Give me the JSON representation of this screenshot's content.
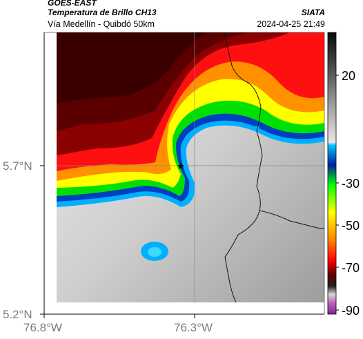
{
  "header": {
    "satellite": "GOES-EAST",
    "product": "Temperatura de Brillo CH13",
    "route": "Vía Medellín - Quibdó 50km",
    "organization": "SIATA",
    "timestamp": "2024-04-25 21:49"
  },
  "axes": {
    "lat_labels": [
      "5.7°N",
      "5.2°N"
    ],
    "lon_labels": [
      "76.8°W",
      "76.3°W"
    ]
  },
  "colorbar": {
    "ticks": [
      "20",
      "-30",
      "-50",
      "-70",
      "-90"
    ]
  },
  "marker": {
    "name": "star-icon"
  },
  "colors": {
    "warm_cloud": "#7a7a7a",
    "cold_top": "#8b0000",
    "axis_label": "#7a7a7a"
  }
}
